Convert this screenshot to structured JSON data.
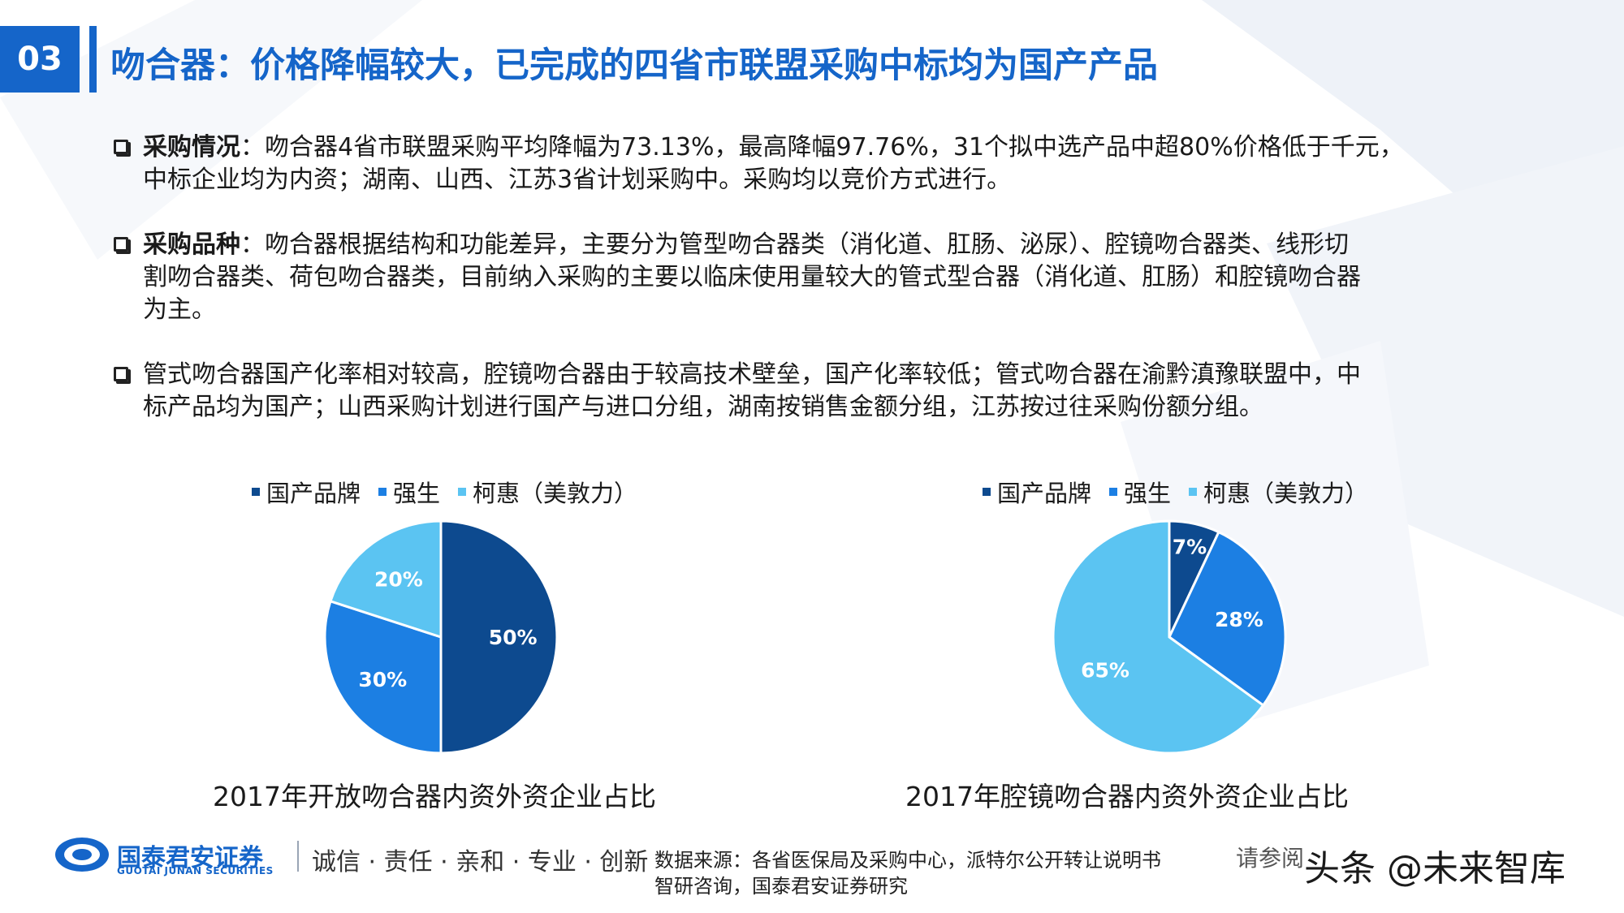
{
  "header": {
    "number": "03",
    "title": "吻合器：价格降幅较大，已完成的四省市联盟采购中标均为国产产品"
  },
  "bullets": [
    {
      "lead": "采购情况",
      "lines": [
        "：吻合器4省市联盟采购平均降幅为73.13%，最高降幅97.76%，31个拟中选产品中超80%价格低于千元，",
        "中标企业均为内资；湖南、山西、江苏3省计划采购中。采购均以竞价方式进行。"
      ]
    },
    {
      "lead": "采购品种",
      "lines": [
        "：吻合器根据结构和功能差异，主要分为管型吻合器类（消化道、肛肠、泌尿）、腔镜吻合器类、线形切",
        "割吻合器类、荷包吻合器类，目前纳入采购的主要以临床使用量较大的管式型合器（消化道、肛肠）和腔镜吻合器",
        "为主。"
      ]
    },
    {
      "lead": "",
      "lines": [
        "管式吻合器国产化率相对较高，腔镜吻合器由于较高技术壁垒，国产化率较低；管式吻合器在渝黔滇豫联盟中，中",
        "标产品均为国产；山西采购计划进行国产与进口分组，湖南按销售金额分组，江苏按过往采购份额分组。"
      ]
    }
  ],
  "colors": {
    "domestic": "#0d4a8f",
    "jnj": "#1c7fe3",
    "covidien": "#5bc4f2",
    "accent": "#1565c9"
  },
  "chart_data": [
    {
      "type": "pie",
      "title": "2017年开放吻合器内资外资企业占比",
      "categories": [
        "国产品牌",
        "强生",
        "柯惠（美敦力）"
      ],
      "values": [
        50,
        30,
        20
      ],
      "labels": [
        "50%",
        "30%",
        "20%"
      ],
      "legend": "top"
    },
    {
      "type": "pie",
      "title": "2017年腔镜吻合器内资外资企业占比",
      "categories": [
        "国产品牌",
        "强生",
        "柯惠（美敦力）"
      ],
      "values": [
        7,
        28,
        65
      ],
      "labels": [
        "7%",
        "28%",
        "65%"
      ],
      "legend": "top"
    }
  ],
  "footer": {
    "company": "国泰君安证券",
    "company_en": "GUOTAI JUNAN SECURITIES",
    "slogan": "诚信 · 责任 · 亲和 · 专业 · 创新",
    "source_line1": "数据来源：各省医保局及采购中心，派特尔公开转让说明书",
    "source_line2": "智研咨询，国泰君安证券研究",
    "disclaimer": "请参阅",
    "watermark": "头条 @未来智库"
  }
}
